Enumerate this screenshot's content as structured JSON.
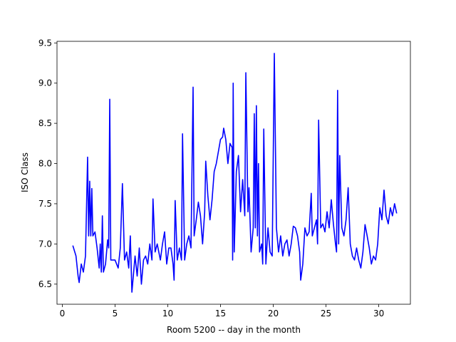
{
  "chart_data": {
    "type": "line",
    "x_label": "Room 5200 -- day in the month",
    "y_label": "ISO Class",
    "grid": false,
    "xlim": [
      -0.5,
      33.0
    ],
    "ylim": [
      6.25,
      9.52
    ],
    "xticks": [
      0,
      5,
      10,
      15,
      20,
      25,
      30
    ],
    "yticks": [
      6.5,
      {
        "value": 7,
        "label": "7.0"
      },
      7.5,
      {
        "value": 8,
        "label": "8.0"
      },
      8.5,
      {
        "value": 9,
        "label": "9.0"
      },
      9.5
    ],
    "series": [
      {
        "color": "#0000ff",
        "x": [
          1.0,
          1.3,
          1.5,
          1.6,
          1.8,
          2.0,
          2.2,
          2.4,
          2.5,
          2.6,
          2.7,
          2.8,
          2.9,
          3.1,
          3.3,
          3.5,
          3.6,
          3.7,
          3.8,
          3.9,
          4.1,
          4.3,
          4.4,
          4.5,
          4.6,
          5.0,
          5.3,
          5.5,
          5.7,
          5.9,
          6.1,
          6.3,
          6.45,
          6.6,
          6.9,
          7.1,
          7.3,
          7.5,
          7.7,
          7.9,
          8.1,
          8.3,
          8.5,
          8.6,
          8.8,
          9.0,
          9.3,
          9.5,
          9.7,
          9.9,
          10.1,
          10.3,
          10.5,
          10.6,
          10.7,
          10.9,
          11.1,
          11.3,
          11.4,
          11.6,
          11.8,
          12.0,
          12.2,
          12.4,
          12.5,
          12.7,
          12.9,
          13.1,
          13.3,
          13.5,
          13.6,
          13.8,
          14.0,
          14.2,
          14.4,
          14.6,
          14.8,
          15.0,
          15.2,
          15.3,
          15.5,
          15.7,
          15.9,
          16.1,
          16.15,
          16.2,
          16.3,
          16.5,
          16.7,
          16.9,
          17.1,
          17.3,
          17.4,
          17.6,
          17.7,
          17.9,
          18.1,
          18.2,
          18.3,
          18.4,
          18.5,
          18.6,
          18.7,
          18.9,
          19.0,
          19.1,
          19.3,
          19.5,
          19.7,
          19.9,
          20.1,
          20.3,
          20.5,
          20.7,
          20.9,
          21.1,
          21.3,
          21.5,
          21.7,
          21.9,
          22.1,
          22.3,
          22.5,
          22.6,
          22.8,
          23.0,
          23.2,
          23.4,
          23.6,
          23.7,
          23.9,
          24.1,
          24.2,
          24.3,
          24.5,
          24.7,
          24.9,
          25.1,
          25.3,
          25.5,
          25.7,
          25.9,
          26.0,
          26.1,
          26.2,
          26.3,
          26.5,
          26.7,
          26.9,
          27.1,
          27.3,
          27.5,
          27.7,
          27.9,
          28.1,
          28.3,
          28.5,
          28.7,
          28.9,
          29.1,
          29.3,
          29.5,
          29.7,
          29.9,
          30.1,
          30.3,
          30.5,
          30.7,
          30.9,
          31.1,
          31.3,
          31.5,
          31.7
        ],
        "values": [
          6.98,
          6.85,
          6.6,
          6.52,
          6.75,
          6.65,
          6.85,
          8.08,
          7.1,
          7.78,
          7.1,
          7.69,
          7.1,
          7.15,
          6.95,
          6.7,
          7.0,
          6.65,
          7.35,
          6.65,
          6.75,
          7.05,
          6.95,
          8.8,
          6.8,
          6.8,
          6.7,
          6.95,
          7.75,
          6.8,
          6.9,
          6.7,
          7.1,
          6.4,
          6.85,
          6.6,
          6.95,
          6.5,
          6.8,
          6.85,
          6.75,
          7.0,
          6.8,
          7.56,
          6.9,
          7.0,
          6.8,
          7.0,
          7.15,
          6.75,
          6.95,
          6.95,
          6.75,
          6.55,
          7.54,
          6.8,
          6.95,
          6.8,
          8.37,
          6.8,
          7.0,
          7.1,
          6.95,
          8.95,
          7.1,
          7.3,
          7.52,
          7.35,
          7.0,
          7.4,
          8.03,
          7.6,
          7.3,
          7.55,
          7.9,
          8.0,
          8.15,
          8.3,
          8.33,
          8.44,
          8.3,
          8.0,
          8.25,
          8.2,
          6.8,
          9.0,
          6.9,
          7.9,
          8.1,
          7.4,
          7.8,
          7.35,
          9.13,
          7.4,
          7.7,
          6.9,
          7.2,
          8.62,
          7.2,
          8.72,
          7.1,
          8.0,
          6.9,
          7.0,
          6.75,
          8.43,
          6.75,
          7.2,
          6.9,
          6.85,
          9.37,
          7.2,
          6.9,
          7.1,
          6.85,
          7.0,
          7.05,
          6.85,
          7.0,
          7.22,
          7.2,
          7.1,
          6.9,
          6.55,
          6.75,
          7.2,
          7.1,
          7.15,
          7.63,
          7.1,
          7.2,
          7.3,
          7.0,
          8.54,
          7.2,
          7.25,
          7.15,
          7.4,
          7.2,
          7.55,
          7.25,
          7.0,
          6.9,
          8.91,
          7.0,
          8.1,
          7.2,
          7.1,
          7.3,
          7.7,
          7.0,
          6.85,
          6.8,
          6.95,
          6.8,
          6.7,
          6.9,
          7.24,
          7.1,
          6.95,
          6.75,
          6.85,
          6.8,
          7.0,
          7.45,
          7.3,
          7.67,
          7.35,
          7.25,
          7.45,
          7.35,
          7.5,
          7.38
        ]
      }
    ]
  }
}
